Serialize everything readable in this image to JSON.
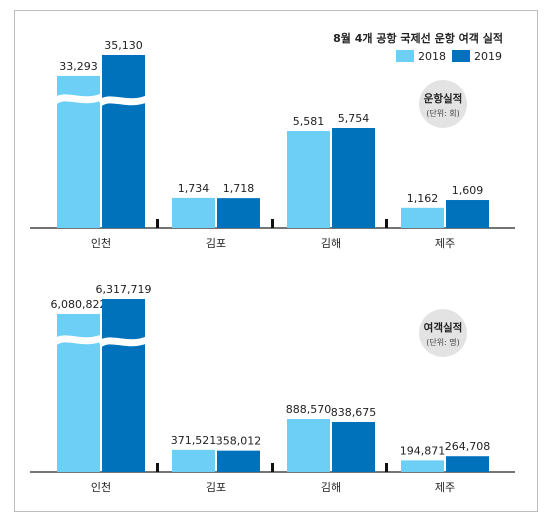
{
  "title": "8월 4개 공항 국제선 운항 여객 실적",
  "legend": [
    {
      "label": "2018",
      "color": "#6dcff6"
    },
    {
      "label": "2019",
      "color": "#0072bc"
    }
  ],
  "chart_data": [
    {
      "type": "bar",
      "badge": {
        "title": "운항실적",
        "unit": "(단위: 회)"
      },
      "categories": [
        "인천",
        "김포",
        "김해",
        "제주"
      ],
      "series": [
        {
          "name": "2018",
          "values": [
            33293,
            1734,
            5581,
            1162
          ],
          "labels": [
            "33,293",
            "1,734",
            "5,581",
            "1,162"
          ],
          "color": "#6dcff6"
        },
        {
          "name": "2019",
          "values": [
            35130,
            1718,
            5754,
            1609
          ],
          "labels": [
            "35,130",
            "1,718",
            "5,754",
            "1,609"
          ],
          "color": "#0072bc"
        }
      ],
      "axis_break": "인천"
    },
    {
      "type": "bar",
      "badge": {
        "title": "여객실적",
        "unit": "(단위: 명)"
      },
      "categories": [
        "인천",
        "김포",
        "김해",
        "제주"
      ],
      "series": [
        {
          "name": "2018",
          "values": [
            6080822,
            371521,
            888570,
            194871
          ],
          "labels": [
            "6,080,822",
            "371,521",
            "888,570",
            "194,871"
          ],
          "color": "#6dcff6"
        },
        {
          "name": "2019",
          "values": [
            6317719,
            358012,
            838675,
            264708
          ],
          "labels": [
            "6,317,719",
            "358,012",
            "838,675",
            "264,708"
          ],
          "color": "#0072bc"
        }
      ],
      "axis_break": "인천"
    }
  ]
}
